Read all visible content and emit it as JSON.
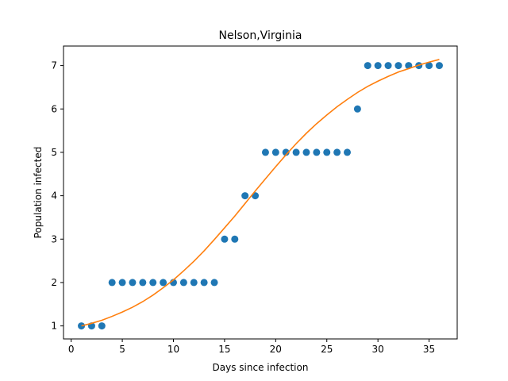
{
  "chart_data": {
    "type": "scatter",
    "title": "Nelson,Virginia",
    "xlabel": "Days since infection",
    "ylabel": "Population infected",
    "xlim": [
      -0.75,
      37.75
    ],
    "ylim": [
      0.7,
      7.45
    ],
    "xticks": [
      0,
      5,
      10,
      15,
      20,
      25,
      30,
      35
    ],
    "yticks": [
      1,
      2,
      3,
      4,
      5,
      6,
      7
    ],
    "grid": false,
    "series": [
      {
        "kind": "scatter",
        "color": "#1f77b4",
        "x": [
          1,
          2,
          3,
          4,
          5,
          6,
          7,
          8,
          9,
          10,
          11,
          12,
          13,
          14,
          15,
          16,
          17,
          18,
          19,
          20,
          21,
          22,
          23,
          24,
          25,
          26,
          27,
          28,
          29,
          30,
          31,
          32,
          33,
          34,
          35,
          36
        ],
        "y": [
          1,
          1,
          1,
          2,
          2,
          2,
          2,
          2,
          2,
          2,
          2,
          2,
          2,
          2,
          3,
          3,
          4,
          4,
          5,
          5,
          5,
          5,
          5,
          5,
          5,
          5,
          5,
          6,
          7,
          7,
          7,
          7,
          7,
          7,
          7,
          7
        ]
      },
      {
        "kind": "line",
        "color": "#ff7f0e",
        "x": [
          1,
          2,
          3,
          4,
          5,
          6,
          7,
          8,
          9,
          10,
          11,
          12,
          13,
          14,
          15,
          16,
          17,
          18,
          19,
          20,
          21,
          22,
          23,
          24,
          25,
          26,
          27,
          28,
          29,
          30,
          31,
          32,
          33,
          34,
          35,
          36
        ],
        "y": [
          1.0,
          1.06,
          1.13,
          1.22,
          1.32,
          1.43,
          1.56,
          1.71,
          1.88,
          2.06,
          2.27,
          2.49,
          2.73,
          2.99,
          3.26,
          3.53,
          3.82,
          4.11,
          4.39,
          4.67,
          4.94,
          5.2,
          5.44,
          5.66,
          5.86,
          6.05,
          6.22,
          6.38,
          6.52,
          6.64,
          6.75,
          6.85,
          6.93,
          7.01,
          7.08,
          7.14
        ]
      }
    ]
  }
}
